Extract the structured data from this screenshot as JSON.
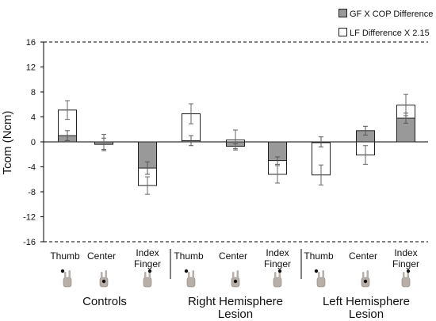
{
  "chart_data": {
    "type": "bar",
    "ylabel": "Tcom (Ncm)",
    "ylim": [
      -16,
      16
    ],
    "yticks": [
      -16,
      -12,
      -8,
      -4,
      0,
      4,
      8,
      12,
      16
    ],
    "reference_lines": [
      16,
      -16
    ],
    "grid": false,
    "legend_position": "top-right",
    "series": [
      {
        "name": "GF X COP Difference",
        "color": "#999999",
        "values": [
          1.0,
          -0.4,
          -4.2,
          0.2,
          -0.7,
          -3.0,
          0.0,
          1.8,
          3.8
        ],
        "errors": [
          0.8,
          1.0,
          1.0,
          0.8,
          0.4,
          0.6,
          0.8,
          0.7,
          0.8
        ]
      },
      {
        "name": "LF Difference X 2.15",
        "color": "#ffffff",
        "values": [
          5.1,
          0.0,
          -7.0,
          4.5,
          0.3,
          -5.2,
          -5.3,
          -2.1,
          5.9
        ],
        "errors": [
          1.5,
          1.2,
          1.4,
          1.6,
          1.6,
          1.4,
          1.6,
          1.5,
          1.7
        ]
      }
    ],
    "categories": [
      "Thumb",
      "Center",
      "Index Finger",
      "Thumb",
      "Center",
      "Index Finger",
      "Thumb",
      "Center",
      "Index Finger"
    ],
    "groups": [
      {
        "label": "Controls"
      },
      {
        "label": "Right Hemisphere Lesion"
      },
      {
        "label": "Left Hemisphere Lesion"
      }
    ]
  },
  "icons": [
    "hand-icon-thumb",
    "hand-icon-center",
    "hand-icon-index",
    "hand-icon-thumb",
    "hand-icon-center",
    "hand-icon-index",
    "hand-icon-thumb",
    "hand-icon-center",
    "hand-icon-index"
  ]
}
